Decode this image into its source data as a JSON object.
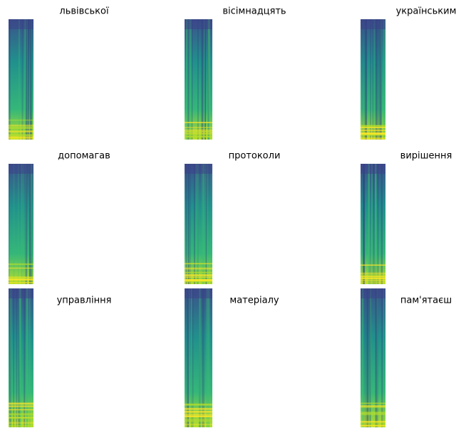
{
  "panels": [
    {
      "title": "львівської"
    },
    {
      "title": "вісімнадцять"
    },
    {
      "title": "українським"
    },
    {
      "title": "допомагав"
    },
    {
      "title": "протоколи"
    },
    {
      "title": "вирішення"
    },
    {
      "title": "управління"
    },
    {
      "title": "матеріалу"
    },
    {
      "title": "пам'ятаєш"
    }
  ]
}
